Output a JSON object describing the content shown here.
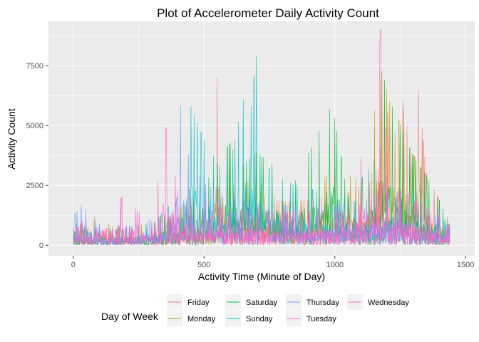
{
  "chart_data": {
    "type": "line",
    "title": "Plot of Accelerometer Daily Activity Count",
    "xlabel": "Activity Time (Minute of Day)",
    "ylabel": "Activity Count",
    "xlim": [
      -95,
      1535
    ],
    "ylim": [
      -440,
      9350
    ],
    "x_ticks": [
      0,
      500,
      1000,
      1500
    ],
    "x_tick_labels": [
      "0",
      "500",
      "1000",
      "1500"
    ],
    "y_ticks": [
      0,
      2500,
      5000,
      7500
    ],
    "y_tick_labels": [
      "0",
      "2500",
      "5000",
      "7500"
    ],
    "grid": true,
    "legend": {
      "title": "Day of Week",
      "position": "bottom",
      "columns": [
        [
          "Friday",
          "Monday"
        ],
        [
          "Saturday",
          "Sunday"
        ],
        [
          "Thursday",
          "Tuesday"
        ],
        [
          "Wednesday"
        ]
      ]
    },
    "series": [
      {
        "name": "Friday",
        "color": "#F8766D",
        "peaks": [
          [
            20,
            700
          ],
          [
            120,
            600
          ],
          [
            300,
            550
          ],
          [
            400,
            1300
          ],
          [
            450,
            1200
          ],
          [
            500,
            1500
          ],
          [
            550,
            7000
          ],
          [
            600,
            2200
          ],
          [
            700,
            2300
          ],
          [
            760,
            1900
          ],
          [
            850,
            1800
          ],
          [
            950,
            2000
          ],
          [
            1050,
            2200
          ],
          [
            1100,
            2500
          ],
          [
            1150,
            2700
          ],
          [
            1200,
            5600
          ],
          [
            1230,
            4700
          ],
          [
            1260,
            6000
          ],
          [
            1290,
            4100
          ],
          [
            1320,
            6500
          ],
          [
            1350,
            3000
          ],
          [
            1400,
            1900
          ],
          [
            1430,
            900
          ]
        ]
      },
      {
        "name": "Monday",
        "color": "#B79F00",
        "peaks": [
          [
            30,
            900
          ],
          [
            80,
            1200
          ],
          [
            150,
            800
          ],
          [
            260,
            900
          ],
          [
            350,
            1300
          ],
          [
            420,
            1700
          ],
          [
            520,
            1500
          ],
          [
            600,
            2500
          ],
          [
            700,
            2700
          ],
          [
            800,
            1800
          ],
          [
            900,
            1900
          ],
          [
            1000,
            3400
          ],
          [
            1100,
            2600
          ],
          [
            1180,
            7300
          ],
          [
            1210,
            6000
          ],
          [
            1245,
            5200
          ],
          [
            1300,
            3800
          ],
          [
            1400,
            1900
          ],
          [
            1430,
            1200
          ]
        ]
      },
      {
        "name": "Saturday",
        "color": "#00BA38",
        "peaks": [
          [
            40,
            600
          ],
          [
            200,
            700
          ],
          [
            350,
            1100
          ],
          [
            420,
            1500
          ],
          [
            500,
            2500
          ],
          [
            600,
            4300
          ],
          [
            650,
            3400
          ],
          [
            700,
            3900
          ],
          [
            760,
            3400
          ],
          [
            850,
            2700
          ],
          [
            980,
            5700
          ],
          [
            1000,
            5300
          ],
          [
            1050,
            2000
          ],
          [
            1150,
            3500
          ],
          [
            1190,
            6900
          ],
          [
            1220,
            5800
          ],
          [
            1260,
            4800
          ],
          [
            1300,
            3700
          ],
          [
            1350,
            2900
          ],
          [
            1400,
            1900
          ],
          [
            1435,
            900
          ]
        ]
      },
      {
        "name": "Sunday",
        "color": "#00BFC4",
        "peaks": [
          [
            10,
            900
          ],
          [
            100,
            700
          ],
          [
            300,
            900
          ],
          [
            400,
            2000
          ],
          [
            450,
            5800
          ],
          [
            500,
            4400
          ],
          [
            560,
            3300
          ],
          [
            610,
            4000
          ],
          [
            650,
            6100
          ],
          [
            680,
            5800
          ],
          [
            700,
            7900
          ],
          [
            720,
            3700
          ],
          [
            760,
            3000
          ],
          [
            830,
            2600
          ],
          [
            900,
            2400
          ],
          [
            990,
            2000
          ],
          [
            1050,
            1800
          ],
          [
            1150,
            2000
          ],
          [
            1200,
            2800
          ],
          [
            1300,
            2200
          ],
          [
            1400,
            1600
          ],
          [
            1435,
            800
          ]
        ]
      },
      {
        "name": "Thursday",
        "color": "#619CFF",
        "peaks": [
          [
            5,
            1300
          ],
          [
            30,
            1700
          ],
          [
            100,
            900
          ],
          [
            250,
            800
          ],
          [
            340,
            1400
          ],
          [
            410,
            5800
          ],
          [
            440,
            3800
          ],
          [
            500,
            2600
          ],
          [
            600,
            2000
          ],
          [
            680,
            1800
          ],
          [
            750,
            1600
          ],
          [
            850,
            1700
          ],
          [
            950,
            1600
          ],
          [
            1050,
            1800
          ],
          [
            1150,
            2000
          ],
          [
            1250,
            2300
          ],
          [
            1350,
            1600
          ],
          [
            1430,
            900
          ]
        ]
      },
      {
        "name": "Tuesday",
        "color": "#F564E3",
        "peaks": [
          [
            20,
            800
          ],
          [
            150,
            700
          ],
          [
            300,
            900
          ],
          [
            400,
            1300
          ],
          [
            500,
            1200
          ],
          [
            600,
            1400
          ],
          [
            700,
            1300
          ],
          [
            800,
            1400
          ],
          [
            900,
            1500
          ],
          [
            1000,
            1600
          ],
          [
            1100,
            3700
          ],
          [
            1200,
            2100
          ],
          [
            1300,
            1800
          ],
          [
            1400,
            1400
          ],
          [
            1430,
            800
          ]
        ]
      },
      {
        "name": "Wednesday",
        "color": "#FF61C3",
        "peaks": [
          [
            30,
            1000
          ],
          [
            185,
            2000
          ],
          [
            300,
            1000
          ],
          [
            355,
            4900
          ],
          [
            400,
            2300
          ],
          [
            450,
            2000
          ],
          [
            500,
            1800
          ],
          [
            560,
            1600
          ],
          [
            650,
            1500
          ],
          [
            700,
            1700
          ],
          [
            780,
            1300
          ],
          [
            850,
            1400
          ],
          [
            950,
            1500
          ],
          [
            1050,
            1400
          ],
          [
            1140,
            2000
          ],
          [
            1175,
            9000
          ],
          [
            1200,
            3000
          ],
          [
            1250,
            2400
          ],
          [
            1350,
            1500
          ],
          [
            1435,
            800
          ]
        ]
      }
    ]
  }
}
